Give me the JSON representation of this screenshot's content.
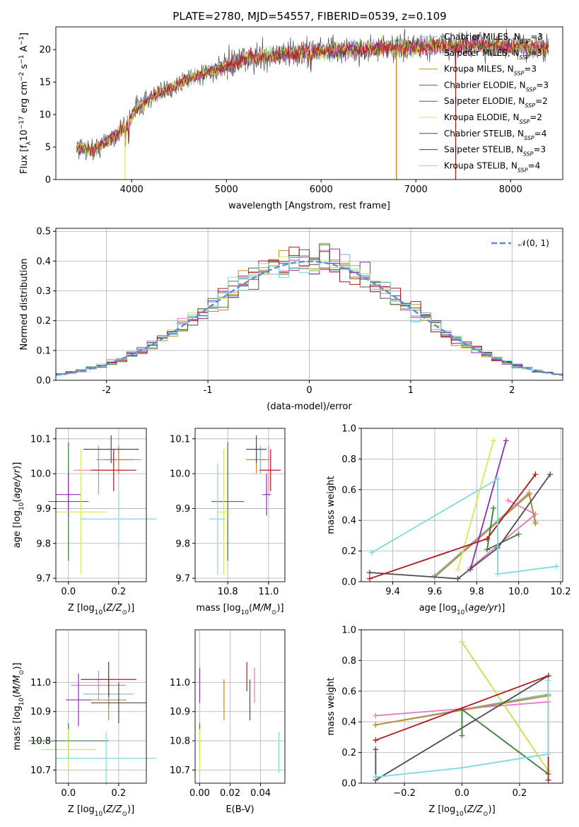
{
  "title": "PLATE=2780, MJD=54557, FIBERID=0539, z=0.109",
  "colors": {
    "Chabrier MILES": "#7fb2c9",
    "Salpeter MILES": "#e377c2",
    "Kroupa MILES": "#c48a2a",
    "Chabrier ELODIE": "#3a7d3a",
    "Salpeter ELODIE": "#8e2fb0",
    "Kroupa ELODIE": "#d8e85a",
    "Chabrier STELIB": "#4d4d4d",
    "Salpeter STELIB": "#b0161e",
    "Kroupa STELIB": "#7fdada",
    "normal": "#5b8ed6",
    "C_miles_line": "#d98a3a",
    "C_elodie_line": "#4f9fd9"
  },
  "models": [
    {
      "name": "Chabrier MILES",
      "nssp": "3",
      "label": "Chabrier MILES, N",
      "sub": "SSP",
      "eq": "=3"
    },
    {
      "name": "Salpeter MILES",
      "nssp": "3",
      "label": "Salpeter MILES, N",
      "sub": "SSP",
      "eq": "=3"
    },
    {
      "name": "Kroupa MILES",
      "nssp": "3",
      "label": "Kroupa MILES, N",
      "sub": "SSP",
      "eq": "=3"
    },
    {
      "name": "Chabrier ELODIE",
      "nssp": "3",
      "label": "Chabrier ELODIE, N",
      "sub": "SSP",
      "eq": "=3"
    },
    {
      "name": "Salpeter ELODIE",
      "nssp": "2",
      "label": "Salpeter ELODIE, N",
      "sub": "SSP",
      "eq": "=2"
    },
    {
      "name": "Kroupa ELODIE",
      "nssp": "2",
      "label": "Kroupa ELODIE, N",
      "sub": "SSP",
      "eq": "=2"
    },
    {
      "name": "Chabrier STELIB",
      "nssp": "4",
      "label": "Chabrier STELIB, N",
      "sub": "SSP",
      "eq": "=4"
    },
    {
      "name": "Salpeter STELIB",
      "nssp": "3",
      "label": "Salpeter STELIB, N",
      "sub": "SSP",
      "eq": "=3"
    },
    {
      "name": "Kroupa STELIB",
      "nssp": "4",
      "label": "Kroupa STELIB, N",
      "sub": "SSP",
      "eq": "=4"
    }
  ],
  "chart_data": [
    {
      "id": "spectrum",
      "type": "line",
      "title": "PLATE=2780, MJD=54557, FIBERID=0539, z=0.109",
      "xlabel": "wavelength [Angstrom, rest frame]",
      "ylabel": "Flux [fλ10⁻¹⁷ erg cm⁻² s⁻¹ A⁻¹]",
      "xlim": [
        3200,
        8550
      ],
      "ylim": [
        0,
        23.5
      ],
      "xticks": [
        4000,
        5000,
        6000,
        7000,
        8000
      ],
      "yticks": [
        0,
        5,
        10,
        15,
        20
      ],
      "continuum": [
        [
          3420,
          5.0
        ],
        [
          3600,
          4.5
        ],
        [
          3700,
          5.5
        ],
        [
          3850,
          7
        ],
        [
          3950,
          8.5
        ],
        [
          4050,
          11
        ],
        [
          4200,
          12.5
        ],
        [
          4400,
          14
        ],
        [
          4600,
          15.5
        ],
        [
          4800,
          16.5
        ],
        [
          5000,
          17.5
        ],
        [
          5200,
          18.5
        ],
        [
          5400,
          19
        ],
        [
          5600,
          19.3
        ],
        [
          5800,
          19.6
        ],
        [
          6000,
          19.8
        ],
        [
          6200,
          20
        ],
        [
          6400,
          20
        ],
        [
          6600,
          20.2
        ],
        [
          6800,
          20.3
        ],
        [
          7000,
          20.4
        ],
        [
          7200,
          20.6
        ],
        [
          7400,
          20.6
        ],
        [
          7600,
          20.7
        ],
        [
          7800,
          20.6
        ],
        [
          8000,
          20.5
        ],
        [
          8200,
          20.4
        ],
        [
          8400,
          20.3
        ]
      ],
      "legend": "upper right"
    },
    {
      "id": "residuals",
      "type": "histogram",
      "xlabel": "(data-model)/error",
      "ylabel": "Normed distribution",
      "xlim": [
        -2.5,
        2.5
      ],
      "ylim": [
        0,
        0.51
      ],
      "xticks": [
        -2,
        -1,
        0,
        1,
        2
      ],
      "yticks": [
        0.0,
        0.1,
        0.2,
        0.3,
        0.4,
        0.5
      ],
      "bin_width": 0.1,
      "reference_label": "𝒩(0, 1)",
      "legend": "upper right"
    },
    {
      "id": "age_vs_Z",
      "type": "errorbar",
      "xlabel": "Z [log10(Z/Z☉)]",
      "ylabel": "age [log10(age/yr)]",
      "xlim": [
        -0.05,
        0.31
      ],
      "ylim": [
        9.69,
        10.13
      ],
      "xticks": [
        0.0,
        0.2
      ],
      "yticks": [
        9.7,
        9.8,
        9.9,
        10.0,
        10.1
      ],
      "points": [
        {
          "m": "Chabrier MILES",
          "x": 0.2,
          "xe": 0.09,
          "y": 10.04,
          "ye": 0.04
        },
        {
          "m": "Salpeter MILES",
          "x": 0.12,
          "xe": 0.1,
          "y": 10.01,
          "ye": 0.07
        },
        {
          "m": "Kroupa MILES",
          "x": 0.2,
          "xe": 0.06,
          "y": 10.04,
          "ye": 0.04
        },
        {
          "m": "Chabrier ELODIE",
          "x": 0.0,
          "xe": 0.08,
          "y": 9.92,
          "ye": 0.17
        },
        {
          "m": "Salpeter ELODIE",
          "x": 0.0,
          "xe": 0.05,
          "y": 9.94,
          "ye": 0.06
        },
        {
          "m": "Kroupa ELODIE",
          "x": 0.05,
          "xe": 0.1,
          "y": 9.89,
          "ye": 0.18
        },
        {
          "m": "Chabrier STELIB",
          "x": 0.17,
          "xe": 0.11,
          "y": 10.07,
          "ye": 0.04
        },
        {
          "m": "Salpeter STELIB",
          "x": 0.18,
          "xe": 0.09,
          "y": 10.01,
          "ye": 0.06
        },
        {
          "m": "Kroupa STELIB",
          "x": 0.2,
          "xe": 0.15,
          "y": 9.87,
          "ye": 0.08
        }
      ]
    },
    {
      "id": "age_vs_mass",
      "type": "errorbar",
      "xlabel": "mass [log10(M/M☉)]",
      "ylabel": "",
      "xlim": [
        10.64,
        11.08
      ],
      "ylim": [
        9.69,
        10.13
      ],
      "xticks": [
        10.8,
        11.0
      ],
      "yticks": [
        9.7,
        9.8,
        9.9,
        10.0,
        10.1
      ],
      "points": [
        {
          "m": "Chabrier MILES",
          "x": 10.96,
          "xe": 0.05,
          "y": 10.04,
          "ye": 0.04
        },
        {
          "m": "Salpeter MILES",
          "x": 11.0,
          "xe": 0.05,
          "y": 10.01,
          "ye": 0.07
        },
        {
          "m": "Kroupa MILES",
          "x": 10.94,
          "xe": 0.05,
          "y": 10.04,
          "ye": 0.04
        },
        {
          "m": "Chabrier ELODIE",
          "x": 10.8,
          "xe": 0.08,
          "y": 9.92,
          "ye": 0.17
        },
        {
          "m": "Salpeter ELODIE",
          "x": 10.99,
          "xe": 0.02,
          "y": 9.94,
          "ye": 0.06
        },
        {
          "m": "Kroupa ELODIE",
          "x": 10.78,
          "xe": 0.03,
          "y": 9.89,
          "ye": 0.18
        },
        {
          "m": "Chabrier STELIB",
          "x": 10.94,
          "xe": 0.05,
          "y": 10.07,
          "ye": 0.04
        },
        {
          "m": "Salpeter STELIB",
          "x": 11.01,
          "xe": 0.05,
          "y": 10.01,
          "ye": 0.06
        },
        {
          "m": "Kroupa STELIB",
          "x": 10.75,
          "xe": 0.04,
          "y": 9.87,
          "ye": 0.16
        }
      ]
    },
    {
      "id": "weight_vs_age",
      "type": "line",
      "xlabel": "age [log10(age/yr)]",
      "ylabel": "mass weight",
      "xlim": [
        9.25,
        10.21
      ],
      "ylim": [
        0,
        1
      ],
      "xticks": [
        9.4,
        9.6,
        9.8,
        10.0,
        10.2
      ],
      "yticks": [
        0.0,
        0.2,
        0.4,
        0.6,
        0.8,
        1.0
      ],
      "series": [
        {
          "m": "Chabrier MILES",
          "pts": [
            [
              9.6,
              0.04
            ],
            [
              10.05,
              0.58
            ],
            [
              10.08,
              0.39
            ]
          ]
        },
        {
          "m": "Salpeter MILES",
          "pts": [
            [
              9.95,
              0.53
            ],
            [
              10.08,
              0.44
            ],
            [
              9.77,
              0.09
            ]
          ]
        },
        {
          "m": "Kroupa MILES",
          "pts": [
            [
              9.6,
              0.03
            ],
            [
              10.05,
              0.57
            ],
            [
              10.08,
              0.38
            ]
          ]
        },
        {
          "m": "Chabrier ELODIE",
          "pts": [
            [
              9.88,
              0.48
            ],
            [
              9.85,
              0.21
            ],
            [
              10.0,
              0.31
            ]
          ]
        },
        {
          "m": "Salpeter ELODIE",
          "pts": [
            [
              9.77,
              0.08
            ],
            [
              9.94,
              0.92
            ]
          ]
        },
        {
          "m": "Kroupa ELODIE",
          "pts": [
            [
              9.71,
              0.08
            ],
            [
              9.88,
              0.92
            ]
          ]
        },
        {
          "m": "Chabrier STELIB",
          "pts": [
            [
              9.29,
              0.06
            ],
            [
              9.71,
              0.02
            ],
            [
              9.9,
              0.22
            ],
            [
              10.15,
              0.7
            ]
          ]
        },
        {
          "m": "Salpeter STELIB",
          "pts": [
            [
              9.29,
              0.02
            ],
            [
              9.85,
              0.28
            ],
            [
              10.08,
              0.7
            ]
          ]
        },
        {
          "m": "Kroupa STELIB",
          "pts": [
            [
              9.3,
              0.19
            ],
            [
              9.9,
              0.67
            ],
            [
              9.9,
              0.05
            ],
            [
              10.18,
              0.1
            ]
          ]
        }
      ]
    },
    {
      "id": "mass_vs_Z",
      "type": "errorbar",
      "xlabel": "Z [log10(Z/Z☉)]",
      "ylabel": "mass [log10(M/M☉)]",
      "xlim": [
        -0.05,
        0.31
      ],
      "ylim": [
        10.655,
        11.18
      ],
      "xticks": [
        0.0,
        0.2
      ],
      "yticks": [
        10.7,
        10.8,
        10.9,
        11.0
      ],
      "points": [
        {
          "m": "Chabrier MILES",
          "x": 0.16,
          "xe": 0.1,
          "y": 10.96,
          "ye": 0.05
        },
        {
          "m": "Salpeter MILES",
          "x": 0.12,
          "xe": 0.11,
          "y": 10.99,
          "ye": 0.05
        },
        {
          "m": "Kroupa MILES",
          "x": 0.16,
          "xe": 0.07,
          "y": 10.94,
          "ye": 0.07
        },
        {
          "m": "Chabrier ELODIE",
          "x": 0.0,
          "xe": 0.16,
          "y": 10.8,
          "ye": 0.06
        },
        {
          "m": "Salpeter ELODIE",
          "x": 0.04,
          "xe": 0.05,
          "y": 10.94,
          "ye": 0.09
        },
        {
          "m": "Kroupa ELODIE",
          "x": 0.0,
          "xe": 0.11,
          "y": 10.77,
          "ye": 0.07
        },
        {
          "m": "Chabrier STELIB",
          "x": 0.2,
          "xe": 0.11,
          "y": 10.93,
          "ye": 0.07
        },
        {
          "m": "Salpeter STELIB",
          "x": 0.16,
          "xe": 0.11,
          "y": 11.01,
          "ye": 0.06
        },
        {
          "m": "Kroupa STELIB",
          "x": 0.15,
          "xe": 0.2,
          "y": 10.74,
          "ye": 0.09
        }
      ]
    },
    {
      "id": "mass_vs_ebv",
      "type": "errorbar",
      "xlabel": "E(B-V)",
      "ylabel": "",
      "xlim": [
        -0.003,
        0.056
      ],
      "ylim": [
        10.655,
        11.18
      ],
      "xticks": [
        0.0,
        0.02,
        0.04
      ],
      "yticks": [
        10.7,
        10.8,
        10.9,
        11.0
      ],
      "points": [
        {
          "m": "Chabrier MILES",
          "x": 0.016,
          "xe": 0,
          "y": 10.96,
          "ye": 0.05
        },
        {
          "m": "Salpeter MILES",
          "x": 0.036,
          "xe": 0,
          "y": 10.99,
          "ye": 0.06
        },
        {
          "m": "Kroupa MILES",
          "x": 0.016,
          "xe": 0,
          "y": 10.94,
          "ye": 0.07
        },
        {
          "m": "Chabrier ELODIE",
          "x": 0.0,
          "xe": 0,
          "y": 10.8,
          "ye": 0.06
        },
        {
          "m": "Salpeter ELODIE",
          "x": 0.0,
          "xe": 0,
          "y": 10.99,
          "ye": 0.06
        },
        {
          "m": "Kroupa ELODIE",
          "x": 0.0,
          "xe": 0,
          "y": 10.77,
          "ye": 0.07
        },
        {
          "m": "Chabrier STELIB",
          "x": 0.033,
          "xe": 0,
          "y": 10.94,
          "ye": 0.07
        },
        {
          "m": "Salpeter STELIB",
          "x": 0.031,
          "xe": 0,
          "y": 11.02,
          "ye": 0.05
        },
        {
          "m": "Kroupa STELIB",
          "x": 0.052,
          "xe": 0,
          "y": 10.76,
          "ye": 0.07
        }
      ]
    },
    {
      "id": "weight_vs_Z",
      "type": "line",
      "xlabel": "Z [log10(Z/Z☉)]",
      "ylabel": "mass weight",
      "xlim": [
        -0.35,
        0.35
      ],
      "ylim": [
        0,
        1
      ],
      "xticks": [
        -0.2,
        0.0,
        0.2
      ],
      "yticks": [
        0.0,
        0.2,
        0.4,
        0.6,
        0.8,
        1.0
      ],
      "series": [
        {
          "m": "Chabrier MILES",
          "pts": [
            [
              -0.3,
              0.38
            ],
            [
              0.3,
              0.58
            ]
          ]
        },
        {
          "m": "Salpeter MILES",
          "pts": [
            [
              -0.3,
              0.44
            ],
            [
              0.3,
              0.53
            ]
          ]
        },
        {
          "m": "Kroupa MILES",
          "pts": [
            [
              -0.3,
              0.38
            ],
            [
              0.3,
              0.57
            ]
          ]
        },
        {
          "m": "Chabrier ELODIE",
          "pts": [
            [
              0.0,
              0.31
            ],
            [
              0.0,
              0.48
            ],
            [
              0.3,
              0.06
            ]
          ]
        },
        {
          "m": "Salpeter ELODIE",
          "pts": [
            [
              0.0,
              0.92
            ],
            [
              0.3,
              0.08
            ]
          ]
        },
        {
          "m": "Kroupa ELODIE",
          "pts": [
            [
              0.0,
              0.92
            ],
            [
              0.3,
              0.08
            ]
          ]
        },
        {
          "m": "Chabrier STELIB",
          "pts": [
            [
              -0.3,
              0.22
            ],
            [
              -0.3,
              0.02
            ],
            [
              0.3,
              0.7
            ]
          ]
        },
        {
          "m": "Salpeter STELIB",
          "pts": [
            [
              -0.3,
              0.28
            ],
            [
              0.3,
              0.7
            ],
            [
              0.3,
              0.02
            ]
          ]
        },
        {
          "m": "Kroupa STELIB",
          "pts": [
            [
              -0.3,
              0.04
            ],
            [
              0.0,
              0.1
            ],
            [
              0.3,
              0.19
            ],
            [
              0.3,
              0.67
            ]
          ]
        }
      ]
    }
  ]
}
